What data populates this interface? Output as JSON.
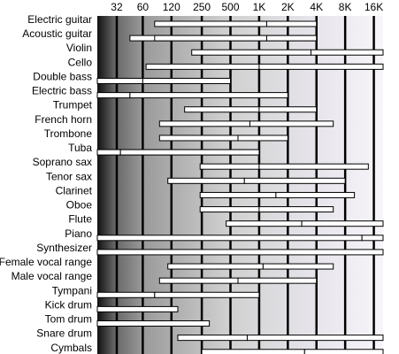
{
  "chart_data": {
    "type": "bar",
    "orientation": "horizontal-range",
    "x_scale": "log",
    "x_unit": "Hz",
    "xlim": [
      20,
      20000
    ],
    "grid": true,
    "x_ticks": [
      {
        "value": 32,
        "label": "32"
      },
      {
        "value": 60,
        "label": "60"
      },
      {
        "value": 120,
        "label": "120"
      },
      {
        "value": 250,
        "label": "250"
      },
      {
        "value": 500,
        "label": "500"
      },
      {
        "value": 1000,
        "label": "1K"
      },
      {
        "value": 2000,
        "label": "2K"
      },
      {
        "value": 4000,
        "label": "4K"
      },
      {
        "value": 8000,
        "label": "8K"
      },
      {
        "value": 16000,
        "label": "16K"
      }
    ],
    "categories": [
      "Electric guitar",
      "Acoustic guitar",
      "Violin",
      "Cello",
      "Double bass",
      "Electric bass",
      "Trumpet",
      "French horn",
      "Trombone",
      "Tuba",
      "Soprano sax",
      "Tenor sax",
      "Clarinet",
      "Oboe",
      "Flute",
      "Piano",
      "Synthesizer",
      "Female vocal range",
      "Male vocal range",
      "Tympani",
      "Kick drum",
      "Tom drum",
      "Snare drum",
      "Cymbals"
    ],
    "ranges": [
      {
        "fundamental": [
          80,
          1200
        ],
        "harmonics": [
          1200,
          4000
        ]
      },
      {
        "fundamental": [
          80,
          1200
        ],
        "harmonics": [
          1200,
          4000
        ],
        "outline": [
          44,
          4000
        ]
      },
      {
        "fundamental": [
          196,
          3500
        ],
        "harmonics": [
          3500,
          20000
        ]
      },
      {
        "fundamental": [
          65,
          1000
        ],
        "harmonics": [
          1000,
          20000
        ]
      },
      {
        "fundamental": [
          20,
          60
        ],
        "harmonics": [
          60,
          500
        ],
        "outline": [
          20,
          500
        ]
      },
      {
        "fundamental": [
          20,
          44
        ],
        "harmonics": [
          44,
          2000
        ]
      },
      {
        "fundamental": [
          165,
          1000
        ],
        "harmonics": [
          1000,
          4000
        ]
      },
      {
        "fundamental": [
          90,
          800
        ],
        "harmonics": [
          800,
          6000
        ]
      },
      {
        "fundamental": [
          90,
          600
        ],
        "harmonics": [
          600,
          2000
        ]
      },
      {
        "fundamental": [
          20,
          35
        ],
        "harmonics": [
          35,
          1000
        ],
        "outline": [
          20,
          1000
        ]
      },
      {
        "fundamental": [
          240,
          1000
        ],
        "harmonics": [
          1000,
          14000
        ]
      },
      {
        "fundamental": [
          110,
          700
        ],
        "harmonics": [
          700,
          8000
        ]
      },
      {
        "fundamental": [
          240,
          1500
        ],
        "harmonics": [
          1500,
          10000
        ]
      },
      {
        "fundamental": [
          240,
          1000
        ],
        "harmonics": [
          1000,
          6000
        ]
      },
      {
        "fundamental": [
          450,
          2800
        ],
        "harmonics": [
          2800,
          20000
        ]
      },
      {
        "fundamental": [
          20,
          12000
        ],
        "harmonics": [
          12000,
          20000
        ]
      },
      {
        "fundamental": [
          20,
          20000
        ],
        "harmonics": [
          20000,
          20000
        ]
      },
      {
        "fundamental": [
          110,
          1100
        ],
        "harmonics": [
          1100,
          6000
        ]
      },
      {
        "fundamental": [
          90,
          600
        ],
        "harmonics": [
          600,
          4000
        ]
      },
      {
        "fundamental": [
          20,
          80
        ],
        "harmonics": [
          80,
          1000
        ]
      },
      {
        "fundamental": [
          20,
          140
        ],
        "harmonics": [
          140,
          140
        ]
      },
      {
        "fundamental": [
          20,
          300
        ],
        "harmonics": [
          300,
          300
        ]
      },
      {
        "fundamental": [
          140,
          750
        ],
        "harmonics": [
          750,
          20000
        ]
      },
      {
        "fundamental": [
          250,
          3000
        ],
        "harmonics": [
          3000,
          20000
        ]
      }
    ],
    "colors": {
      "band_dark": "#111111",
      "band_mid": "#9a9a9a",
      "band_light": "#f7f5fa",
      "gridline": "#000000",
      "bar_fill": "#ffffff",
      "bar_stroke": "#000000"
    }
  }
}
